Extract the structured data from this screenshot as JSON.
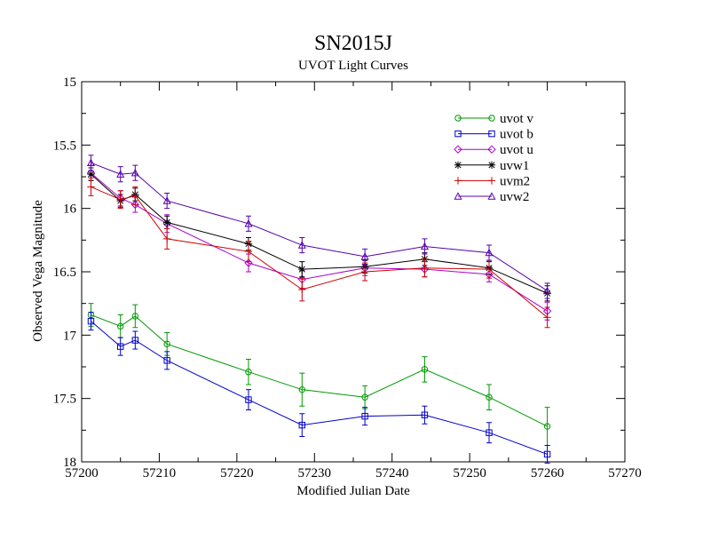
{
  "chart_data": {
    "type": "line",
    "title": "SN2015J",
    "subtitle": "UVOT Light Curves",
    "xlabel": "Modified Julian Date",
    "ylabel": "Observed Vega Magnitude",
    "xlim": [
      57200,
      57270
    ],
    "ylim": [
      15,
      18
    ],
    "y_inverted": true,
    "x_ticks": [
      57200,
      57210,
      57220,
      57230,
      57240,
      57250,
      57260,
      57270
    ],
    "y_ticks": [
      15,
      15.5,
      16,
      16.5,
      17,
      17.5,
      18
    ],
    "grid": false,
    "legend_position": "top-right",
    "series": [
      {
        "name": "uvot v",
        "color": "#009900",
        "marker": "circle",
        "x": [
          57201.2,
          57205.0,
          57206.9,
          57211.0,
          57221.5,
          57228.4,
          57236.5,
          57244.2,
          57252.5,
          57260.0
        ],
        "y": [
          16.84,
          16.93,
          16.85,
          17.07,
          17.29,
          17.43,
          17.49,
          17.27,
          17.49,
          17.72
        ],
        "err": [
          0.09,
          0.09,
          0.09,
          0.09,
          0.1,
          0.13,
          0.09,
          0.1,
          0.1,
          0.15
        ]
      },
      {
        "name": "uvot b",
        "color": "#0000cc",
        "marker": "square",
        "x": [
          57201.2,
          57205.0,
          57206.9,
          57211.0,
          57221.5,
          57228.4,
          57236.5,
          57244.2,
          57252.5,
          57260.0
        ],
        "y": [
          16.89,
          17.09,
          17.04,
          17.2,
          17.51,
          17.71,
          17.64,
          17.63,
          17.77,
          17.94
        ],
        "err": [
          0.07,
          0.07,
          0.07,
          0.07,
          0.08,
          0.09,
          0.07,
          0.07,
          0.08,
          0.07
        ]
      },
      {
        "name": "uvot u",
        "color": "#aa00cc",
        "marker": "diamond",
        "x": [
          57201.2,
          57205.0,
          57206.9,
          57211.0,
          57221.5,
          57228.4,
          57236.5,
          57244.2,
          57252.5,
          57260.0
        ],
        "y": [
          15.72,
          15.92,
          15.97,
          16.12,
          16.43,
          16.56,
          16.47,
          16.48,
          16.52,
          16.81
        ],
        "err": [
          0.06,
          0.06,
          0.06,
          0.07,
          0.07,
          0.07,
          0.06,
          0.06,
          0.06,
          0.07
        ]
      },
      {
        "name": "uvw1",
        "color": "#000000",
        "marker": "star",
        "x": [
          57201.2,
          57205.0,
          57206.9,
          57211.0,
          57221.5,
          57228.4,
          57236.5,
          57244.2,
          57252.5,
          57260.0
        ],
        "y": [
          15.73,
          15.94,
          15.89,
          16.11,
          16.28,
          16.48,
          16.46,
          16.4,
          16.47,
          16.67
        ],
        "err": [
          0.05,
          0.05,
          0.05,
          0.05,
          0.05,
          0.06,
          0.05,
          0.05,
          0.05,
          0.06
        ]
      },
      {
        "name": "uvm2",
        "color": "#cc0000",
        "marker": "plus",
        "x": [
          57201.2,
          57205.0,
          57206.9,
          57211.0,
          57221.5,
          57228.4,
          57236.5,
          57244.2,
          57252.5,
          57260.0
        ],
        "y": [
          15.83,
          15.93,
          15.9,
          16.24,
          16.34,
          16.64,
          16.5,
          16.47,
          16.48,
          16.86
        ],
        "err": [
          0.07,
          0.07,
          0.07,
          0.08,
          0.08,
          0.09,
          0.07,
          0.07,
          0.07,
          0.08
        ]
      },
      {
        "name": "uvw2",
        "color": "#5500aa",
        "marker": "triangle",
        "x": [
          57201.2,
          57205.0,
          57206.9,
          57211.0,
          57221.5,
          57228.4,
          57236.5,
          57244.2,
          57252.5,
          57260.0
        ],
        "y": [
          15.64,
          15.73,
          15.72,
          15.94,
          16.12,
          16.29,
          16.38,
          16.3,
          16.35,
          16.65
        ],
        "err": [
          0.06,
          0.06,
          0.06,
          0.06,
          0.06,
          0.06,
          0.06,
          0.06,
          0.06,
          0.06
        ]
      }
    ]
  }
}
